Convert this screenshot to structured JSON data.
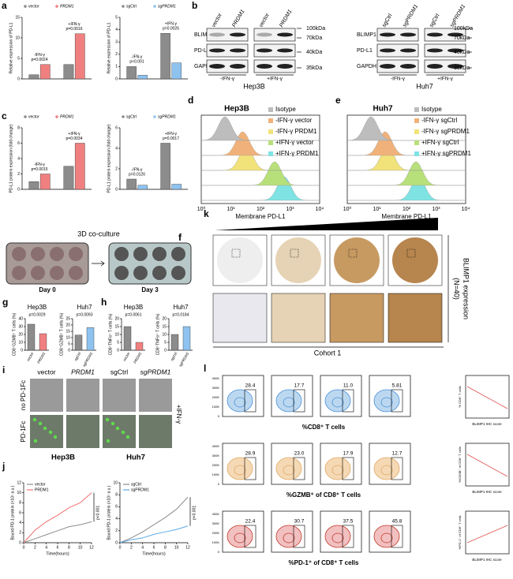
{
  "panel_letters": [
    "a",
    "b",
    "c",
    "d",
    "e",
    "f",
    "g",
    "h",
    "i",
    "j",
    "k",
    "l"
  ],
  "chart_data": [
    {
      "type": "bar",
      "ylabel": "Relative expression of PD-L1",
      "categories": [
        "-IFN-γ",
        "+IFN-γ"
      ],
      "pvalues": [
        "p=0.0024",
        "p=0.0016"
      ],
      "ylim": [
        0,
        15
      ],
      "yticks": [
        0,
        5,
        10,
        15
      ],
      "series": [
        {
          "name": "vector",
          "color": "#8c8c8c",
          "values": [
            1,
            3.5
          ]
        },
        {
          "name": "PRDM1",
          "color": "#f08080",
          "values": [
            3.5,
            11
          ]
        }
      ]
    },
    {
      "type": "bar",
      "ylabel": "Relative expression of PD-L1",
      "categories": [
        "-IFN-γ",
        "+IFN-γ"
      ],
      "pvalues": [
        "p<0.001",
        "p=0.0026"
      ],
      "ylim": [
        0,
        5
      ],
      "yticks": [
        0,
        1,
        2,
        3,
        4,
        5
      ],
      "series": [
        {
          "name": "sgCtrl",
          "color": "#8c8c8c",
          "values": [
            1,
            3.7
          ]
        },
        {
          "name": "sgPRDM1",
          "color": "#8ec3f0",
          "values": [
            0.3,
            1.3
          ]
        }
      ]
    },
    {
      "type": "bar",
      "ylabel": "PD-L1 protein expression (fold change)",
      "categories": [
        "-IFN-γ",
        "+IFN-γ"
      ],
      "pvalues": [
        "p=0.0015",
        "p=0.0034"
      ],
      "ylim": [
        0,
        8
      ],
      "yticks": [
        0,
        2,
        4,
        6,
        8
      ],
      "series": [
        {
          "name": "vector",
          "color": "#8c8c8c",
          "values": [
            1,
            3
          ]
        },
        {
          "name": "PRDM1",
          "color": "#f08080",
          "values": [
            2,
            6
          ]
        }
      ]
    },
    {
      "type": "bar",
      "ylabel": "PD-L1 protein expression (fold change)",
      "categories": [
        "-IFN-γ",
        "+IFN-γ"
      ],
      "pvalues": [
        "p=0.0126",
        "p=0.0017"
      ],
      "ylim": [
        0,
        6
      ],
      "yticks": [
        0,
        2,
        4,
        6
      ],
      "series": [
        {
          "name": "sgCtrl",
          "color": "#8c8c8c",
          "values": [
            1,
            4.5
          ]
        },
        {
          "name": "sgPRDM1",
          "color": "#8ec3f0",
          "values": [
            0.4,
            0.5
          ]
        }
      ]
    },
    {
      "type": "bar",
      "title": "Hep3B",
      "ylabel": "CD8⁺GZMB⁺ T cells (%)",
      "pvalue": "p=0.0029",
      "categories": [
        "vector",
        "PRDM1"
      ],
      "values": [
        33,
        21
      ],
      "colors": [
        "#8c8c8c",
        "#f08080"
      ],
      "ylim": [
        0,
        40
      ],
      "yticks": [
        0,
        10,
        20,
        30,
        40
      ]
    },
    {
      "type": "bar",
      "title": "Huh7",
      "ylabel": "CD8⁺GZMB⁺ T cells (%)",
      "pvalue": "p=0.0093",
      "categories": [
        "sgCtrl",
        "sgPRDM1"
      ],
      "values": [
        12,
        18
      ],
      "colors": [
        "#8c8c8c",
        "#8ec3f0"
      ],
      "ylim": [
        0,
        25
      ],
      "yticks": [
        0,
        5,
        10,
        15,
        20,
        25
      ]
    },
    {
      "type": "bar",
      "title": "Hep3B",
      "ylabel": "CD8⁺TNFα⁺ T cells (%)",
      "pvalue": "p=0.0061",
      "categories": [
        "vector",
        "PRDM1"
      ],
      "values": [
        15,
        5
      ],
      "colors": [
        "#8c8c8c",
        "#f08080"
      ],
      "ylim": [
        0,
        20
      ],
      "yticks": [
        0,
        5,
        10,
        15,
        20
      ]
    },
    {
      "type": "bar",
      "title": "Huh7",
      "ylabel": "CD8⁺TNFα⁺ T cells (%)",
      "pvalue": "p=0.0184",
      "categories": [
        "sgCtrl",
        "sgPRDM1"
      ],
      "values": [
        10,
        15
      ],
      "colors": [
        "#8c8c8c",
        "#8ec3f0"
      ],
      "ylim": [
        0,
        20
      ],
      "yticks": [
        0,
        5,
        10,
        15,
        20
      ]
    },
    {
      "type": "line",
      "xlabel": "Time(hours)",
      "ylabel": "Bound PD-1 protein (×10⁵ a.u.)",
      "annotation": "p<0.001",
      "x": [
        0,
        2,
        4,
        6,
        8,
        10,
        12
      ],
      "xlim": [
        0,
        12
      ],
      "xticks": [
        0,
        2,
        4,
        6,
        8,
        10,
        12
      ],
      "ylim": [
        0,
        12
      ],
      "yticks": [
        0,
        2,
        4,
        6,
        8,
        10,
        12
      ],
      "series": [
        {
          "name": "vector",
          "color": "#8c8c8c",
          "values": [
            0,
            0.8,
            1.6,
            2.4,
            3.2,
            3.6,
            4.2
          ]
        },
        {
          "name": "PRDM1",
          "color": "#f07070",
          "values": [
            0,
            2.5,
            4.2,
            5.5,
            7,
            8,
            10
          ]
        }
      ]
    },
    {
      "type": "line",
      "xlabel": "Time(hours)",
      "ylabel": "Bound PD-1 protein (×10⁵ a.u.)",
      "annotation": "p<0.001",
      "x": [
        0,
        2,
        4,
        6,
        8,
        10,
        12
      ],
      "xlim": [
        0,
        12
      ],
      "xticks": [
        0,
        2,
        4,
        6,
        8,
        10,
        12
      ],
      "ylim": [
        0,
        10
      ],
      "yticks": [
        0,
        2,
        4,
        6,
        8,
        10
      ],
      "series": [
        {
          "name": "sgCtrl",
          "color": "#8c8c8c",
          "values": [
            0,
            0.8,
            1.8,
            3,
            4.2,
            5.6,
            7.6
          ]
        },
        {
          "name": "sgPRDM1",
          "color": "#5aa9e6",
          "values": [
            0,
            0.5,
            0.8,
            1.4,
            1.8,
            2.2,
            2.8
          ]
        }
      ]
    }
  ],
  "blots": [
    {
      "cell_line": "Hep3B",
      "columns": [
        "vector",
        "PRDM1",
        "vector",
        "PRDM1"
      ],
      "conditions": [
        "-IFN-γ",
        "+IFN-γ"
      ],
      "rows": [
        "BLIMP1",
        "PD-L1",
        "GAPDH"
      ],
      "markers": [
        "100kDa",
        "70kDa",
        "40kDa",
        "35kDa"
      ]
    },
    {
      "cell_line": "Huh7",
      "columns": [
        "sgCtrl",
        "sgPRDM1",
        "sgCtrl",
        "sgPRDM1"
      ],
      "conditions": [
        "-IFN-γ",
        "+IFN-γ"
      ],
      "rows": [
        "BLIMP1",
        "PD-L1",
        "GAPDH"
      ],
      "markers": [
        "100kDa",
        "70kDa",
        "40kDa",
        "35kDa"
      ]
    }
  ],
  "flow": [
    {
      "title": "Hep3B",
      "legend": [
        "Isotype",
        "-IFN-γ vector",
        "-IFN-γ PRDM1",
        "+IFN-γ vector",
        "+IFN-γ PRDM1"
      ],
      "xlabel": "Membrane PD-L1",
      "xticks": [
        "10⁰",
        "10¹",
        "10²",
        "10³",
        "10⁴"
      ]
    },
    {
      "title": "Huh7",
      "legend": [
        "Isotype",
        "-IFN-γ sgCtrl",
        "-IFN-γ sgPRDM1",
        "+IFN-γ sgCtrl",
        "+IFN-γ sgPRDM1"
      ],
      "xlabel": "Membrane PD-L1",
      "xticks": [
        "10⁰",
        "10¹",
        "10²",
        "10³",
        "10⁴"
      ]
    }
  ],
  "coculture": {
    "title": "3D co-culture",
    "days": [
      "Day 0",
      "Day 3"
    ]
  },
  "ihc": {
    "cohort": "Cohort 1",
    "label": [
      "BLIMP1 expression",
      "(N=40)"
    ]
  },
  "imaging": {
    "columns": [
      "vector",
      "PRDM1",
      "sgCtrl",
      "sgPRDM1"
    ],
    "rows": [
      "no PD-1Fc",
      "PD-1Fc"
    ],
    "treatment": "+IFN-γ",
    "cell_lines": [
      "Hep3B",
      "Huh7"
    ]
  },
  "cohort_flow": {
    "yticks": [
      "400K",
      "300K",
      "200K",
      "100K",
      "0"
    ],
    "scatter_xlabel": "BLIMP1 IHC score",
    "rows": [
      {
        "xlabel": "%CD8⁺ T cells",
        "percents": [
          "28.4",
          "17.7",
          "11.0",
          "5.81"
        ],
        "scatter_ylabel": "% CD8⁺ T cells"
      },
      {
        "xlabel": "%GZMB⁺ of CD8⁺ T cells",
        "percents": [
          "28.9",
          "23.0",
          "17.9",
          "12.7"
        ],
        "scatter_ylabel": "%GZMB⁺ of CD8⁺ T cells"
      },
      {
        "xlabel": "%PD-1⁺ of CD8⁺ T cells",
        "percents": [
          "22.4",
          "30.7",
          "37.5",
          "45.8"
        ],
        "scatter_ylabel": "%PD-1⁺ of CD8⁺ T cells"
      }
    ]
  }
}
